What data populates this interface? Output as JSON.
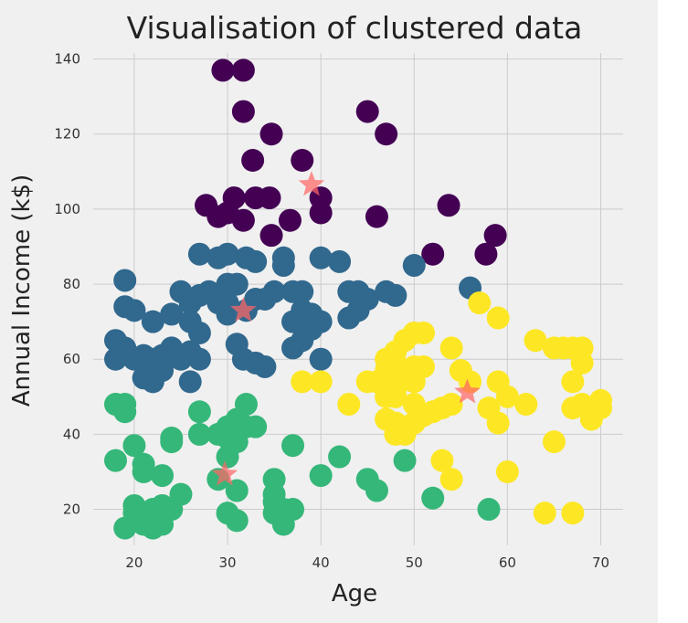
{
  "chart_data": {
    "type": "scatter",
    "title": "Visualisation of clustered data",
    "xlabel": "Age",
    "ylabel": "Annual Income (k$)",
    "xlim": [
      15.6,
      72.4
    ],
    "ylim": [
      10.4,
      141.6
    ],
    "xticks": [
      20,
      30,
      40,
      50,
      60,
      70
    ],
    "yticks": [
      20,
      40,
      60,
      80,
      100,
      120,
      140
    ],
    "grid": true,
    "background": "#f0f0f0",
    "gridcolor": "#cbcbcb",
    "series": [
      {
        "color": "#440154",
        "points": [
          [
            29.5,
            137
          ],
          [
            31.7,
            137
          ],
          [
            31.7,
            126
          ],
          [
            45,
            126
          ],
          [
            34.7,
            120
          ],
          [
            47,
            120
          ],
          [
            38,
            113
          ],
          [
            32.7,
            113
          ],
          [
            40,
            103
          ],
          [
            30.7,
            103
          ],
          [
            33,
            103
          ],
          [
            34.5,
            103
          ],
          [
            31.7,
            97
          ],
          [
            29,
            98
          ],
          [
            30,
            99
          ],
          [
            27.7,
            101
          ],
          [
            36.7,
            97
          ],
          [
            40,
            99
          ],
          [
            46,
            98
          ],
          [
            53.7,
            101
          ],
          [
            58.7,
            93
          ],
          [
            34.7,
            93
          ],
          [
            52,
            88
          ],
          [
            57.7,
            88
          ]
        ]
      },
      {
        "color": "#31688e",
        "points": [
          [
            19,
            81
          ],
          [
            19,
            74
          ],
          [
            20,
            73
          ],
          [
            18,
            65
          ],
          [
            19,
            63
          ],
          [
            18,
            60
          ],
          [
            19,
            62
          ],
          [
            20,
            60
          ],
          [
            21,
            61
          ],
          [
            22,
            60
          ],
          [
            21,
            55
          ],
          [
            22,
            54
          ],
          [
            23,
            57
          ],
          [
            23,
            61
          ],
          [
            22,
            70
          ],
          [
            24,
            63
          ],
          [
            24,
            61
          ],
          [
            25,
            60
          ],
          [
            24,
            72
          ],
          [
            25,
            78
          ],
          [
            27,
            88
          ],
          [
            29,
            87
          ],
          [
            30,
            88
          ],
          [
            30,
            80
          ],
          [
            32,
            87
          ],
          [
            33,
            86
          ],
          [
            33,
            76
          ],
          [
            32,
            73
          ],
          [
            31,
            80
          ],
          [
            28,
            78
          ],
          [
            27,
            77
          ],
          [
            29,
            75
          ],
          [
            30,
            75
          ],
          [
            26,
            75
          ],
          [
            26,
            70
          ],
          [
            27,
            67
          ],
          [
            26,
            62
          ],
          [
            27,
            60
          ],
          [
            26,
            54
          ],
          [
            30,
            72
          ],
          [
            31,
            64
          ],
          [
            31.7,
            60
          ],
          [
            33,
            59
          ],
          [
            34,
            58
          ],
          [
            34,
            76
          ],
          [
            35,
            78
          ],
          [
            36,
            87
          ],
          [
            36,
            85
          ],
          [
            37,
            78
          ],
          [
            38,
            78
          ],
          [
            38,
            73
          ],
          [
            39,
            72
          ],
          [
            40,
            70
          ],
          [
            39,
            68
          ],
          [
            38,
            65
          ],
          [
            37,
            63
          ],
          [
            40,
            60
          ],
          [
            40,
            87
          ],
          [
            42,
            86
          ],
          [
            43,
            78
          ],
          [
            44,
            78
          ],
          [
            43,
            71
          ],
          [
            44,
            73
          ],
          [
            45,
            76
          ],
          [
            47,
            78
          ],
          [
            48,
            77
          ],
          [
            50,
            85
          ],
          [
            56,
            79
          ],
          [
            38,
            69
          ],
          [
            37,
            70
          ]
        ]
      },
      {
        "color": "#35b779",
        "points": [
          [
            18,
            48
          ],
          [
            19,
            48
          ],
          [
            19,
            46
          ],
          [
            18,
            33
          ],
          [
            20,
            37
          ],
          [
            21,
            32
          ],
          [
            21,
            30
          ],
          [
            20,
            21
          ],
          [
            19,
            15
          ],
          [
            20,
            19
          ],
          [
            21,
            19
          ],
          [
            21,
            16
          ],
          [
            22,
            15
          ],
          [
            22,
            20
          ],
          [
            23,
            21
          ],
          [
            23,
            16
          ],
          [
            24,
            20
          ],
          [
            23,
            29
          ],
          [
            24,
            38
          ],
          [
            24,
            39
          ],
          [
            25,
            24
          ],
          [
            27,
            46
          ],
          [
            27,
            40
          ],
          [
            29,
            40
          ],
          [
            30,
            39
          ],
          [
            30,
            34
          ],
          [
            30,
            42
          ],
          [
            31,
            44
          ],
          [
            31,
            38
          ],
          [
            32,
            48
          ],
          [
            32,
            42
          ],
          [
            33,
            42
          ],
          [
            29,
            28
          ],
          [
            31,
            25
          ],
          [
            30,
            19
          ],
          [
            31,
            17
          ],
          [
            35,
            28
          ],
          [
            35,
            24
          ],
          [
            35,
            22
          ],
          [
            35,
            19
          ],
          [
            36,
            20
          ],
          [
            36,
            16
          ],
          [
            37,
            20
          ],
          [
            37,
            37
          ],
          [
            40,
            29
          ],
          [
            42,
            34
          ],
          [
            45,
            28
          ],
          [
            46,
            25
          ],
          [
            49,
            33
          ],
          [
            52,
            23
          ],
          [
            58,
            20
          ]
        ]
      },
      {
        "color": "#fde725",
        "points": [
          [
            38,
            54
          ],
          [
            40,
            54
          ],
          [
            43,
            48
          ],
          [
            45,
            54
          ],
          [
            46,
            54
          ],
          [
            47,
            57
          ],
          [
            47,
            60
          ],
          [
            48,
            59
          ],
          [
            48,
            62
          ],
          [
            49,
            65
          ],
          [
            50,
            67
          ],
          [
            51,
            67
          ],
          [
            49,
            55
          ],
          [
            50,
            54
          ],
          [
            51,
            58
          ],
          [
            48,
            50
          ],
          [
            47,
            50
          ],
          [
            47,
            44
          ],
          [
            48,
            43
          ],
          [
            48,
            40
          ],
          [
            49,
            40
          ],
          [
            49,
            42
          ],
          [
            50,
            43
          ],
          [
            51,
            45
          ],
          [
            52,
            46
          ],
          [
            53,
            47
          ],
          [
            54,
            48
          ],
          [
            50,
            48
          ],
          [
            50,
            58
          ],
          [
            48,
            52
          ],
          [
            53,
            33
          ],
          [
            54,
            28
          ],
          [
            54,
            63
          ],
          [
            55,
            57
          ],
          [
            56,
            54
          ],
          [
            57,
            75
          ],
          [
            59,
            71
          ],
          [
            58,
            47
          ],
          [
            59,
            43
          ],
          [
            59,
            54
          ],
          [
            60,
            50
          ],
          [
            60,
            30
          ],
          [
            62,
            48
          ],
          [
            63,
            65
          ],
          [
            64,
            19
          ],
          [
            65,
            63
          ],
          [
            65,
            38
          ],
          [
            66,
            63
          ],
          [
            67,
            63
          ],
          [
            67,
            54
          ],
          [
            67,
            47
          ],
          [
            67,
            19
          ],
          [
            68,
            63
          ],
          [
            68,
            59
          ],
          [
            68,
            48
          ],
          [
            69,
            44
          ],
          [
            70,
            47
          ],
          [
            70,
            49
          ]
        ]
      }
    ],
    "centroids": {
      "color": "#ff6666",
      "points": [
        [
          39,
          106.5
        ],
        [
          31.7,
          73
        ],
        [
          29.7,
          29.3
        ],
        [
          55.7,
          51.2
        ]
      ]
    }
  }
}
